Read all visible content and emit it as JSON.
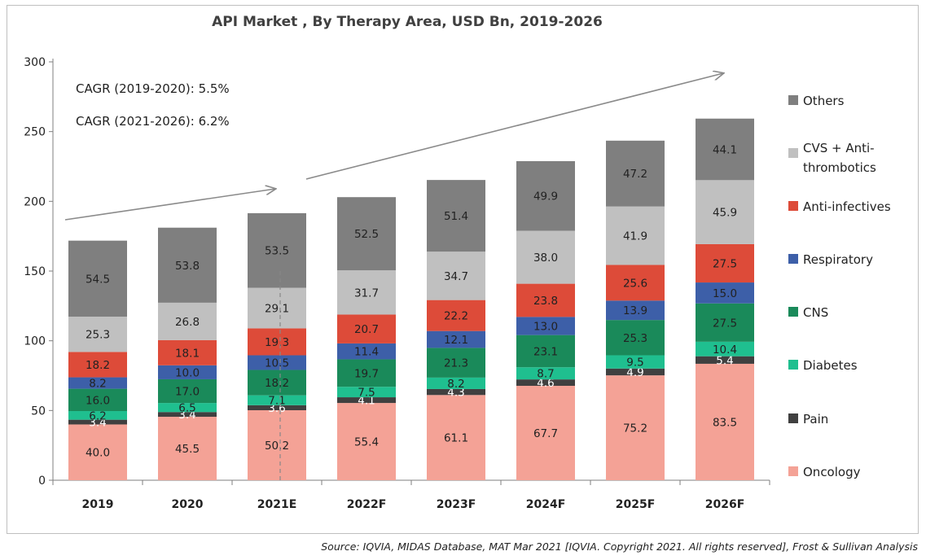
{
  "chart_data": {
    "type": "bar",
    "stacked": true,
    "title": "API Market , By Therapy Area, USD  Bn, 2019-2026",
    "categories": [
      "2019",
      "2020",
      "2021E",
      "2022F",
      "2023F",
      "2024F",
      "2025F",
      "2026F"
    ],
    "ylim": [
      0,
      300
    ],
    "yticks": [
      0,
      50,
      100,
      150,
      200,
      250,
      300
    ],
    "grid": false,
    "legend_position": "right",
    "series": [
      {
        "name": "Oncology",
        "color": "#f4a296",
        "label_color": "#222222",
        "values": [
          40.0,
          45.5,
          50.2,
          55.4,
          61.1,
          67.7,
          75.2,
          83.5
        ],
        "labels": [
          "40.0",
          "45.5",
          "50.2",
          "55.4",
          "61.1",
          "67.7",
          "75.2",
          "83.5"
        ]
      },
      {
        "name": "Pain",
        "color": "#404040",
        "label_color": "#ffffff",
        "values": [
          3.4,
          3.4,
          3.6,
          4.1,
          4.3,
          4.6,
          4.9,
          5.4
        ],
        "labels": [
          "3.4",
          "3.4",
          "3.6",
          "4.1",
          "4.3",
          "4.6",
          "4.9",
          "5.4"
        ]
      },
      {
        "name": "Diabetes",
        "color": "#1fbf8f",
        "label_color": "#222222",
        "values": [
          6.2,
          6.5,
          7.1,
          7.5,
          8.2,
          8.7,
          9.5,
          10.4
        ],
        "labels": [
          "6.2",
          "6.5",
          "7.1",
          "7.5",
          "8.2",
          "8.7",
          "9.5",
          "10.4"
        ]
      },
      {
        "name": "CNS",
        "color": "#1a8a5a",
        "label_color": "#222222",
        "values": [
          16.0,
          17.0,
          18.2,
          19.7,
          21.3,
          23.1,
          25.3,
          27.5
        ],
        "labels": [
          "16.0",
          "17.0",
          "18.2",
          "19.7",
          "21.3",
          "23.1",
          "25.3",
          "27.5"
        ]
      },
      {
        "name": "Respiratory",
        "color": "#3d5fa8",
        "label_color": "#222222",
        "values": [
          8.2,
          10.0,
          10.5,
          11.4,
          12.1,
          13.0,
          13.9,
          15.0
        ],
        "labels": [
          "8.2",
          "10.0",
          "10.5",
          "11.4",
          "12.1",
          "13.0",
          "13.9",
          "15.0"
        ]
      },
      {
        "name": "Anti-infectives",
        "color": "#dd4b39",
        "label_color": "#222222",
        "values": [
          18.2,
          18.1,
          19.3,
          20.7,
          22.2,
          23.8,
          25.6,
          27.5
        ],
        "labels": [
          "18.2",
          "18.1",
          "19.3",
          "20.7",
          "22.2",
          "23.8",
          "25.6",
          "27.5"
        ]
      },
      {
        "name": "CVS + Anti-thrombotics",
        "legend_lines": [
          "CVS + Anti-",
          "thrombotics"
        ],
        "color": "#c0c0c0",
        "label_color": "#222222",
        "values": [
          25.3,
          26.8,
          29.1,
          31.7,
          34.7,
          38.0,
          41.9,
          45.9
        ],
        "labels": [
          "25.3",
          "26.8",
          "29.1",
          "31.7",
          "34.7",
          "38.0",
          "41.9",
          "45.9"
        ]
      },
      {
        "name": "Others",
        "color": "#7f7f7f",
        "label_color": "#222222",
        "values": [
          54.5,
          53.8,
          53.5,
          52.5,
          51.4,
          49.9,
          47.2,
          44.1
        ],
        "labels": [
          "54.5",
          "53.8",
          "53.5",
          "52.5",
          "51.4",
          "49.9",
          "47.2",
          "44.1"
        ]
      }
    ],
    "annotations": [
      "CAGR (2019-2020): 5.5%",
      "CAGR (2021-2026): 6.2%"
    ]
  },
  "source": "Source: IQVIA, MIDAS Database, MAT Mar 2021 [IQVIA. Copyright 2021. All rights reserved], Frost & Sullivan Analysis"
}
